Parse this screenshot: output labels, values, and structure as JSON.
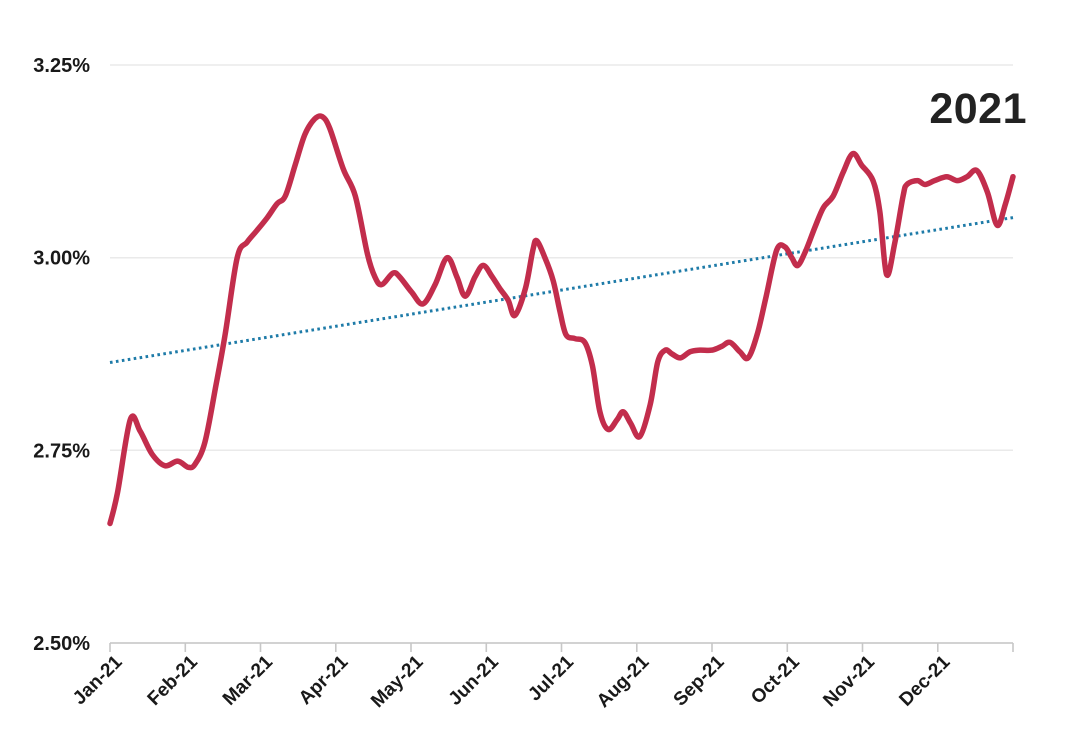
{
  "chart_data": {
    "type": "line",
    "title": "2021",
    "grid": "horizontal",
    "legend": "none",
    "y_axis": {
      "min": 2.5,
      "max": 3.25,
      "format": "percent",
      "tick_values": [
        3.25,
        3.0,
        2.75,
        2.5
      ],
      "tick_labels": [
        "3.25%",
        "3.00%",
        "2.75%",
        "2.50%"
      ]
    },
    "x_axis": {
      "months": 12,
      "tick_labels": [
        "Jan-21",
        "Feb-21",
        "Mar-21",
        "Apr-21",
        "May-21",
        "Jun-21",
        "Jul-21",
        "Aug-21",
        "Sep-21",
        "Oct-21",
        "Nov-21",
        "Dec-21"
      ]
    },
    "colors": {
      "main_line": "#c22d4c",
      "trendline": "#1e7ba8",
      "grid": "#eaeaea",
      "axis": "#c7c7c7",
      "labels": "#191919",
      "title": "#222222",
      "background": "#ffffff"
    },
    "series": [
      {
        "name": "main-line",
        "style": "solid",
        "color": "#c22d4c",
        "stroke_width": 5.5,
        "points": [
          [
            0,
            2.655
          ],
          [
            0.1,
            2.695
          ],
          [
            0.27,
            2.79
          ],
          [
            0.4,
            2.775
          ],
          [
            0.56,
            2.745
          ],
          [
            0.73,
            2.73
          ],
          [
            0.9,
            2.736
          ],
          [
            1.04,
            2.728
          ],
          [
            1.13,
            2.732
          ],
          [
            1.26,
            2.76
          ],
          [
            1.4,
            2.83
          ],
          [
            1.53,
            2.9
          ],
          [
            1.69,
            3.0
          ],
          [
            1.82,
            3.02
          ],
          [
            1.95,
            3.035
          ],
          [
            2.09,
            3.052
          ],
          [
            2.22,
            3.07
          ],
          [
            2.33,
            3.08
          ],
          [
            2.46,
            3.12
          ],
          [
            2.59,
            3.16
          ],
          [
            2.72,
            3.18
          ],
          [
            2.82,
            3.183
          ],
          [
            2.92,
            3.168
          ],
          [
            3.1,
            3.115
          ],
          [
            3.26,
            3.08
          ],
          [
            3.42,
            3.005
          ],
          [
            3.52,
            2.975
          ],
          [
            3.61,
            2.965
          ],
          [
            3.76,
            2.98
          ],
          [
            3.85,
            2.975
          ],
          [
            4.01,
            2.955
          ],
          [
            4.16,
            2.94
          ],
          [
            4.32,
            2.965
          ],
          [
            4.48,
            3.0
          ],
          [
            4.61,
            2.975
          ],
          [
            4.72,
            2.95
          ],
          [
            4.85,
            2.975
          ],
          [
            4.96,
            2.99
          ],
          [
            5.08,
            2.975
          ],
          [
            5.18,
            2.96
          ],
          [
            5.29,
            2.945
          ],
          [
            5.38,
            2.925
          ],
          [
            5.52,
            2.96
          ],
          [
            5.62,
            3.01
          ],
          [
            5.67,
            3.022
          ],
          [
            5.78,
            3.0
          ],
          [
            5.89,
            2.97
          ],
          [
            5.98,
            2.93
          ],
          [
            6.06,
            2.9
          ],
          [
            6.18,
            2.895
          ],
          [
            6.31,
            2.89
          ],
          [
            6.41,
            2.86
          ],
          [
            6.51,
            2.8
          ],
          [
            6.62,
            2.777
          ],
          [
            6.74,
            2.79
          ],
          [
            6.82,
            2.8
          ],
          [
            6.92,
            2.785
          ],
          [
            7.04,
            2.768
          ],
          [
            7.18,
            2.81
          ],
          [
            7.28,
            2.865
          ],
          [
            7.38,
            2.88
          ],
          [
            7.47,
            2.875
          ],
          [
            7.58,
            2.87
          ],
          [
            7.71,
            2.878
          ],
          [
            7.84,
            2.88
          ],
          [
            8,
            2.88
          ],
          [
            8.13,
            2.885
          ],
          [
            8.24,
            2.89
          ],
          [
            8.37,
            2.878
          ],
          [
            8.48,
            2.87
          ],
          [
            8.6,
            2.9
          ],
          [
            8.72,
            2.95
          ],
          [
            8.86,
            3.01
          ],
          [
            8.97,
            3.014
          ],
          [
            9.06,
            3.0
          ],
          [
            9.14,
            2.99
          ],
          [
            9.25,
            3.01
          ],
          [
            9.37,
            3.04
          ],
          [
            9.48,
            3.065
          ],
          [
            9.61,
            3.08
          ],
          [
            9.74,
            3.11
          ],
          [
            9.87,
            3.135
          ],
          [
            9.99,
            3.12
          ],
          [
            10.14,
            3.1
          ],
          [
            10.23,
            3.06
          ],
          [
            10.32,
            2.978
          ],
          [
            10.43,
            3.02
          ],
          [
            10.54,
            3.08
          ],
          [
            10.59,
            3.095
          ],
          [
            10.73,
            3.1
          ],
          [
            10.83,
            3.095
          ],
          [
            10.96,
            3.1
          ],
          [
            11.12,
            3.105
          ],
          [
            11.26,
            3.1
          ],
          [
            11.39,
            3.105
          ],
          [
            11.52,
            3.113
          ],
          [
            11.66,
            3.085
          ],
          [
            11.79,
            3.042
          ],
          [
            11.9,
            3.07
          ],
          [
            12,
            3.105
          ]
        ]
      },
      {
        "name": "trendline",
        "style": "dotted",
        "color": "#1e7ba8",
        "stroke_width": 3,
        "points": [
          [
            0,
            2.864
          ],
          [
            12,
            3.052
          ]
        ]
      }
    ]
  }
}
